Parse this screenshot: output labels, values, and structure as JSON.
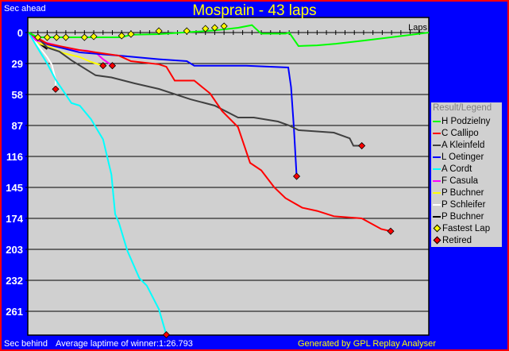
{
  "header": {
    "title": "Mosprain - 43 laps",
    "y_label_top": "Sec ahead",
    "y_label_bottom": "Sec behind",
    "average_laptime": "Average laptime of winner:1:26.793",
    "generated_by": "Generated by GPL Replay Analyser"
  },
  "legend": {
    "title": "Result/Legend",
    "fastest_lap_label": "Fastest Lap",
    "retired_label": "Retired",
    "fastest_lap_color": "#ffff00",
    "retired_color": "#ff0000"
  },
  "chart_data": {
    "type": "line",
    "title": "Mosprain - 43 laps",
    "xlabel": "Laps",
    "ylabel": "Sec ahead / Sec behind",
    "xlim": [
      0,
      43
    ],
    "ylim": [
      -14,
      283
    ],
    "y_inverted": true,
    "y_ticks": [
      0,
      29,
      58,
      87,
      116,
      145,
      174,
      203,
      232,
      261
    ],
    "x_tick_every_lap": true,
    "grid": "horizontal",
    "legend_position": "right",
    "series": [
      {
        "name": "H Podzielny",
        "color": "#00ff00",
        "points": [
          [
            0,
            0
          ],
          [
            1,
            4.5
          ],
          [
            10,
            4.5
          ],
          [
            11,
            2
          ],
          [
            14,
            1.5
          ],
          [
            16.5,
            0
          ],
          [
            20,
            -2
          ],
          [
            22.5,
            -4.5
          ],
          [
            24,
            -7
          ],
          [
            24.3,
            -4.5
          ],
          [
            25,
            1
          ],
          [
            27.6,
            1
          ],
          [
            28,
            0
          ],
          [
            29,
            12.6
          ],
          [
            31,
            12
          ],
          [
            33,
            10.5
          ],
          [
            36,
            7.5
          ],
          [
            39.6,
            3.7
          ],
          [
            43,
            0
          ]
        ]
      },
      {
        "name": "C Callipo",
        "color": "#ff0000",
        "retired": true,
        "points": [
          [
            0,
            0
          ],
          [
            2,
            10.4
          ],
          [
            5.5,
            16.4
          ],
          [
            9.7,
            21.6
          ],
          [
            11,
            26.8
          ],
          [
            14,
            29.7
          ],
          [
            14.8,
            32
          ],
          [
            15.7,
            45
          ],
          [
            17.8,
            45
          ],
          [
            19.5,
            57
          ],
          [
            20.8,
            73.6
          ],
          [
            22.5,
            88.5
          ],
          [
            23.8,
            122
          ],
          [
            25,
            129
          ],
          [
            26.4,
            145
          ],
          [
            27.6,
            155
          ],
          [
            29.4,
            164
          ],
          [
            31,
            167
          ],
          [
            32.8,
            172
          ],
          [
            35.8,
            174
          ],
          [
            37.9,
            184
          ],
          [
            38.9,
            186
          ]
        ]
      },
      {
        "name": "A Kleinfeld",
        "color": "#404040",
        "retired": true,
        "points": [
          [
            0,
            0
          ],
          [
            1.2,
            6.7
          ],
          [
            2,
            14
          ],
          [
            3.3,
            17.8
          ],
          [
            4.6,
            26
          ],
          [
            7.2,
            40
          ],
          [
            8.9,
            42
          ],
          [
            11.4,
            47.6
          ],
          [
            14,
            52.8
          ],
          [
            17.4,
            62.5
          ],
          [
            20,
            68.4
          ],
          [
            22.5,
            79.6
          ],
          [
            24.2,
            79.6
          ],
          [
            26.8,
            83.3
          ],
          [
            28,
            87
          ],
          [
            29,
            91.4
          ],
          [
            32.8,
            93.7
          ],
          [
            34.5,
            99
          ],
          [
            34.9,
            106
          ],
          [
            35.8,
            106
          ]
        ]
      },
      {
        "name": "L Oetinger",
        "color": "#0000ff",
        "retired": true,
        "points": [
          [
            0,
            0
          ],
          [
            2,
            11
          ],
          [
            5.5,
            18.6
          ],
          [
            9.7,
            21.6
          ],
          [
            14,
            25
          ],
          [
            17,
            26.8
          ],
          [
            17.8,
            31
          ],
          [
            23.4,
            31
          ],
          [
            27.9,
            32.7
          ],
          [
            28.2,
            51
          ],
          [
            28.5,
            88.5
          ],
          [
            28.8,
            134.6
          ]
        ]
      },
      {
        "name": "A Cordt",
        "color": "#00ffff",
        "retired": true,
        "points": [
          [
            0,
            0
          ],
          [
            1.2,
            17.8
          ],
          [
            2,
            29
          ],
          [
            2.9,
            44
          ],
          [
            3.75,
            55
          ],
          [
            4.6,
            66
          ],
          [
            5.5,
            68.4
          ],
          [
            6.7,
            81
          ],
          [
            8,
            100
          ],
          [
            8.9,
            133
          ],
          [
            9.3,
            170
          ],
          [
            9.7,
            178
          ],
          [
            10.6,
            204
          ],
          [
            11.9,
            230
          ],
          [
            12.7,
            237
          ],
          [
            14,
            259
          ],
          [
            14.8,
            283
          ]
        ]
      },
      {
        "name": "F Casula",
        "color": "#ff00ff",
        "retired": true,
        "points": [
          [
            0,
            0
          ],
          [
            0.8,
            7.4
          ],
          [
            2,
            9.7
          ],
          [
            3.3,
            12.6
          ],
          [
            4.2,
            15.6
          ],
          [
            6.3,
            17
          ],
          [
            7.2,
            18.6
          ],
          [
            8,
            25
          ],
          [
            9,
            31
          ]
        ]
      },
      {
        "name": "P Buchner",
        "color": "#ffff00",
        "retired": true,
        "points": [
          [
            0,
            0
          ],
          [
            1.2,
            10.4
          ],
          [
            2,
            12.6
          ],
          [
            3.75,
            19.3
          ],
          [
            5.5,
            23
          ],
          [
            6.7,
            27.5
          ],
          [
            8,
            31
          ]
        ]
      },
      {
        "name": "P Schleifer",
        "color": "#ffffff",
        "retired": true,
        "points": [
          [
            0,
            0
          ],
          [
            1.2,
            14
          ],
          [
            2,
            23
          ],
          [
            2.5,
            30
          ],
          [
            2.9,
            44
          ],
          [
            2.9,
            53
          ]
        ]
      },
      {
        "name": "P Buchner",
        "color": "#000000",
        "points": [
          [
            0,
            0
          ],
          [
            1.2,
            10.4
          ],
          [
            2,
            15.6
          ]
        ]
      }
    ],
    "fastest_laps": [
      [
        1,
        4.5
      ],
      [
        2,
        4.5
      ],
      [
        3,
        4.5
      ],
      [
        4,
        4.5
      ],
      [
        6,
        4.5
      ],
      [
        7,
        3.7
      ],
      [
        10,
        3
      ],
      [
        11,
        1.5
      ],
      [
        14,
        -1.5
      ],
      [
        17,
        -1.5
      ],
      [
        19,
        -3.7
      ],
      [
        20,
        -4.5
      ],
      [
        21,
        -6
      ]
    ]
  }
}
